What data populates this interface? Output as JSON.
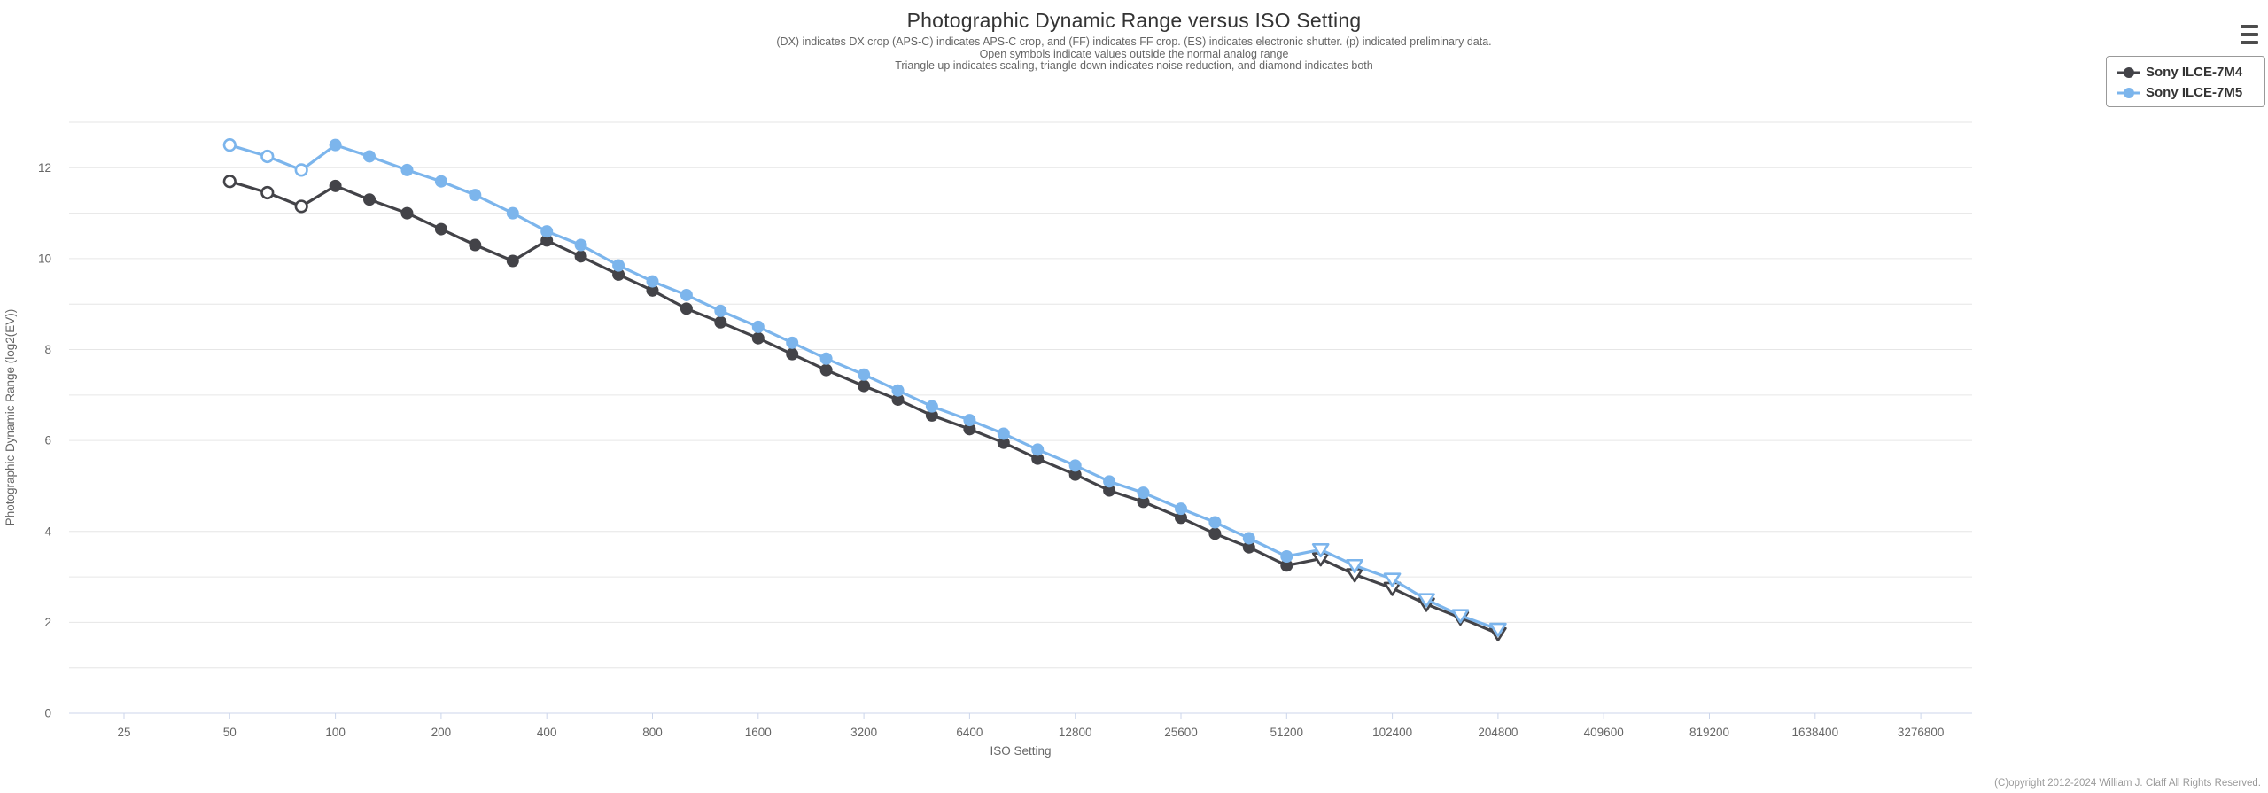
{
  "theme": {
    "background": "#ffffff",
    "grid": "#e6e6e6",
    "axis_line": "#ccd6eb",
    "tick_text": "#666666",
    "title_text": "#333333",
    "subtitle_text": "#666666",
    "legend_text": "#333333",
    "legend_border": "#999999",
    "copyright_text": "#9a9a9a",
    "menu_icon": "#4d4d4d"
  },
  "chart_data": {
    "type": "line",
    "title": "Photographic Dynamic Range versus ISO Setting",
    "subtitle_lines": [
      "(DX) indicates DX crop (APS-C) indicates APS-C crop, and (FF) indicates FF crop. (ES) indicates electronic shutter. (p) indicated preliminary data.",
      "Open symbols indicate values outside the normal analog range",
      "Triangle up indicates scaling, triangle down indicates noise reduction, and diamond indicates both"
    ],
    "xlabel": "ISO Setting",
    "ylabel": "Photographic Dynamic Range (log2(EV))",
    "x_scale": "log2",
    "grid": "horizontal gridline every 1 EV",
    "legend_position": "top-right",
    "ylim": [
      0,
      13
    ],
    "y_ticks": [
      0,
      2,
      4,
      6,
      8,
      10,
      12
    ],
    "x_ticks": [
      25,
      50,
      100,
      200,
      400,
      800,
      1600,
      3200,
      6400,
      12800,
      25600,
      51200,
      102400,
      204800,
      409600,
      819200,
      1638400,
      3276800
    ],
    "x": [
      50,
      64,
      80,
      100,
      125,
      160,
      200,
      250,
      320,
      400,
      500,
      640,
      800,
      1000,
      1250,
      1600,
      2000,
      2500,
      3200,
      4000,
      5000,
      6400,
      8000,
      10000,
      12800,
      16000,
      20000,
      25600,
      32000,
      40000,
      51200,
      64000,
      80000,
      102400,
      128000,
      160000,
      204800
    ],
    "marker_codes": {
      "o": "open-circle (outside normal analog range)",
      "f": "filled-circle",
      "v": "open-triangle-down (noise reduction)"
    },
    "series": [
      {
        "name": "Sony ILCE-7M4",
        "color": "#434348",
        "values": [
          11.7,
          11.45,
          11.15,
          11.6,
          11.3,
          11.0,
          10.65,
          10.3,
          9.95,
          10.4,
          10.05,
          9.65,
          9.3,
          8.9,
          8.6,
          8.25,
          7.9,
          7.55,
          7.2,
          6.9,
          6.55,
          6.25,
          5.95,
          5.6,
          5.25,
          4.9,
          4.65,
          4.3,
          3.95,
          3.65,
          3.25,
          3.4,
          3.05,
          2.75,
          2.4,
          2.1,
          1.75
        ],
        "markers": [
          "o",
          "o",
          "o",
          "f",
          "f",
          "f",
          "f",
          "f",
          "f",
          "f",
          "f",
          "f",
          "f",
          "f",
          "f",
          "f",
          "f",
          "f",
          "f",
          "f",
          "f",
          "f",
          "f",
          "f",
          "f",
          "f",
          "f",
          "f",
          "f",
          "f",
          "f",
          "v",
          "v",
          "v",
          "v",
          "v",
          "v"
        ]
      },
      {
        "name": "Sony ILCE-7M5",
        "color": "#7cb5ec",
        "values": [
          12.5,
          12.25,
          11.95,
          12.5,
          12.25,
          11.95,
          11.7,
          11.4,
          11.0,
          10.6,
          10.3,
          9.85,
          9.5,
          9.2,
          8.85,
          8.5,
          8.15,
          7.8,
          7.45,
          7.1,
          6.75,
          6.45,
          6.15,
          5.8,
          5.45,
          5.1,
          4.85,
          4.5,
          4.2,
          3.85,
          3.45,
          3.6,
          3.25,
          2.95,
          2.5,
          2.15,
          1.85
        ],
        "markers": [
          "o",
          "o",
          "o",
          "f",
          "f",
          "f",
          "f",
          "f",
          "f",
          "f",
          "f",
          "f",
          "f",
          "f",
          "f",
          "f",
          "f",
          "f",
          "f",
          "f",
          "f",
          "f",
          "f",
          "f",
          "f",
          "f",
          "f",
          "f",
          "f",
          "f",
          "f",
          "v",
          "v",
          "v",
          "v",
          "v",
          "v"
        ]
      }
    ]
  },
  "footer": {
    "copyright": "(C)opyright 2012-2024 William J. Claff All Rights Reserved."
  }
}
